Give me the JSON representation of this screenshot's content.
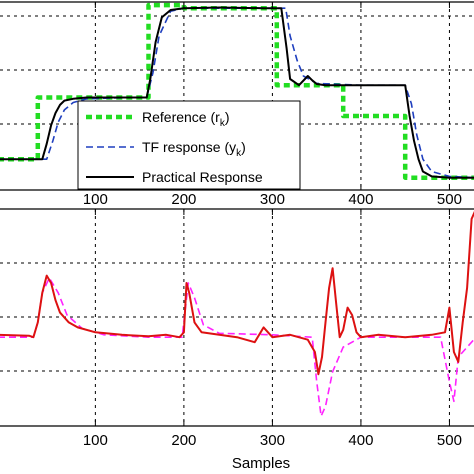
{
  "chart_data": [
    {
      "type": "line",
      "xlim": [
        -10,
        530
      ],
      "ylim": [
        0.5,
        3.55
      ],
      "xticks": [
        100,
        200,
        300,
        400,
        500
      ],
      "grid": true,
      "legend_position": "bottom-right",
      "series": [
        {
          "name": "Reference (r_k)",
          "legend_label": "Reference (r",
          "legend_sub": "k",
          "legend_suffix": ")",
          "color": "#22dd22",
          "style": "dotted",
          "x": [
            -10,
            35,
            35,
            160,
            160,
            200,
            200,
            305,
            305,
            350,
            350,
            380,
            380,
            450,
            450,
            530
          ],
          "y": [
            1.0,
            1.0,
            2.0,
            2.0,
            3.5,
            3.5,
            3.45,
            3.45,
            2.2,
            2.2,
            2.2,
            2.2,
            1.7,
            1.7,
            0.7,
            0.7
          ]
        },
        {
          "name": "TF response (y_k)",
          "legend_label": "TF response (y",
          "legend_sub": "k",
          "legend_suffix": ")",
          "color": "#1f3fbf",
          "style": "dashed",
          "x": [
            -10,
            45,
            52,
            58,
            65,
            75,
            90,
            140,
            158,
            165,
            172,
            185,
            200,
            300,
            315,
            320,
            328,
            335,
            350,
            400,
            450,
            457,
            463,
            470,
            480,
            500,
            530
          ],
          "y": [
            1.0,
            1.0,
            1.3,
            1.6,
            1.8,
            1.92,
            1.98,
            2.0,
            2.0,
            2.4,
            3.0,
            3.4,
            3.45,
            3.45,
            3.45,
            3.0,
            2.6,
            2.35,
            2.23,
            2.2,
            2.2,
            1.9,
            1.4,
            1.0,
            0.8,
            0.72,
            0.7
          ]
        },
        {
          "name": "Practical Response",
          "legend_label": "Practical Response",
          "legend_sub": "",
          "legend_suffix": "",
          "color": "#000000",
          "style": "solid",
          "x": [
            -10,
            40,
            45,
            50,
            55,
            60,
            65,
            75,
            90,
            120,
            158,
            162,
            168,
            175,
            185,
            200,
            240,
            290,
            300,
            310,
            316,
            320,
            330,
            340,
            345,
            350,
            360,
            380,
            400,
            440,
            450,
            455,
            460,
            465,
            470,
            480,
            500,
            510,
            520,
            530
          ],
          "y": [
            1.0,
            1.0,
            1.25,
            1.55,
            1.75,
            1.88,
            1.95,
            1.98,
            2.0,
            2.0,
            2.0,
            2.3,
            2.9,
            3.3,
            3.42,
            3.45,
            3.46,
            3.45,
            3.45,
            3.45,
            2.8,
            2.3,
            2.2,
            2.35,
            2.28,
            2.22,
            2.2,
            2.2,
            2.2,
            2.2,
            2.2,
            1.7,
            1.3,
            1.0,
            0.8,
            0.72,
            0.7,
            0.7,
            0.7,
            0.7
          ]
        }
      ]
    },
    {
      "type": "line",
      "xlabel": "Samples",
      "xlim": [
        -10,
        530
      ],
      "ylim": [
        -1.8,
        2.6
      ],
      "xticks": [
        100,
        200,
        300,
        400,
        500
      ],
      "grid": true,
      "series": [
        {
          "color": "#ff22ff",
          "style": "dashed",
          "x": [
            -10,
            30,
            35,
            40,
            48,
            58,
            68,
            85,
            110,
            160,
            198,
            205,
            212,
            222,
            240,
            300,
            345,
            350,
            355,
            360,
            368,
            380,
            400,
            450,
            490,
            500,
            505,
            510,
            530
          ],
          "y": [
            0,
            0,
            0.3,
            0.9,
            1.2,
            0.9,
            0.45,
            0.18,
            0.05,
            0,
            0,
            1.1,
            0.8,
            0.25,
            0.08,
            0.05,
            0,
            -0.9,
            -1.6,
            -1.4,
            -0.7,
            -0.2,
            0,
            0,
            0,
            -0.9,
            -1.3,
            -0.4,
            0
          ]
        },
        {
          "color": "#dd1111",
          "style": "solid",
          "x": [
            -10,
            25,
            30,
            35,
            40,
            45,
            50,
            55,
            60,
            70,
            80,
            100,
            130,
            160,
            180,
            195,
            200,
            203,
            206,
            212,
            220,
            240,
            260,
            280,
            290,
            300,
            320,
            340,
            348,
            352,
            356,
            360,
            364,
            368,
            372,
            376,
            380,
            385,
            390,
            395,
            400,
            420,
            450,
            480,
            495,
            500,
            505,
            510,
            515,
            520,
            525,
            530
          ],
          "y": [
            0.05,
            0.03,
            0.0,
            0.3,
            0.9,
            1.25,
            1.1,
            0.75,
            0.5,
            0.3,
            0.2,
            0.1,
            0.05,
            0.02,
            0.05,
            0.0,
            0.1,
            1.1,
            0.9,
            0.3,
            0.1,
            0.05,
            0.0,
            -0.1,
            0.2,
            0.0,
            0.05,
            -0.05,
            -0.3,
            -0.75,
            -0.4,
            0.3,
            1.0,
            1.4,
            0.7,
            0.0,
            0.15,
            0.6,
            0.45,
            0.1,
            0.0,
            0.05,
            0.0,
            0.05,
            0.1,
            0.6,
            -0.3,
            -0.5,
            0.3,
            1.0,
            2.4,
            2.6
          ]
        }
      ]
    }
  ]
}
